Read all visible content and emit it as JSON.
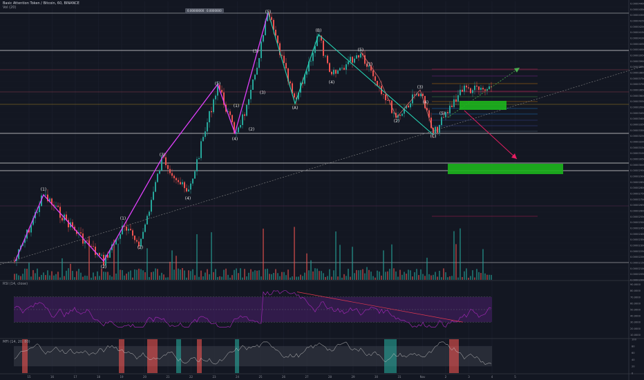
{
  "header": {
    "symbol_line": "Basic Attention Token / Bitcoin, 60, BINANCE",
    "vol_label": "Vol (20)",
    "buttons": [
      "0.00000000",
      "0.0000000"
    ],
    "rsi_label": "RSI (14, close)",
    "mfi_label": "MFI (14, 20, 80)"
  },
  "chart_data": {
    "type": "candlestick",
    "x_tick_labels": [
      "15",
      "16",
      "17",
      "18",
      "19",
      "20",
      "21",
      "22",
      "23",
      "24",
      "25",
      "26",
      "27",
      "28",
      "29",
      "30",
      "31",
      "Nov",
      "2",
      "3",
      "4",
      "5"
    ],
    "price_axis_labels": [
      "0.00004400",
      "0.00004350",
      "0.00004300",
      "0.00004250",
      "0.00004200",
      "0.00004150",
      "0.00004100",
      "0.00004050",
      "0.00004000",
      "0.00003950",
      "0.00003900",
      "0.00003850",
      "0.00003800",
      "0.00003750",
      "0.00003700",
      "0.00003650",
      "0.00003600",
      "0.00003550",
      "0.00003500",
      "0.00003450",
      "0.00003400",
      "0.00003350",
      "0.00003300",
      "0.00003250",
      "0.00003200",
      "0.00003150",
      "0.00003100",
      "0.00003050",
      "0.00003000",
      "0.00002950",
      "0.00002900",
      "0.00002850",
      "0.00002800",
      "0.00002750",
      "0.00002700",
      "0.00002650",
      "0.00002600",
      "0.00002550",
      "0.00002500",
      "0.00002450",
      "0.00002400",
      "0.00002350",
      "0.00002300",
      "0.00002250",
      "0.00002200",
      "0.00002150",
      "0.00002100",
      "0.00002050",
      "0.00002000"
    ],
    "rsi_axis_labels": [
      "90.0000",
      "80.0000",
      "70.0000",
      "60.0000",
      "50.0000",
      "40.0000",
      "30.0000",
      "20.0000",
      "10.0000"
    ],
    "mfi_axis_labels": [
      "100",
      "80",
      "60",
      "40",
      "20",
      "0"
    ],
    "wave_labels": [
      "(1)",
      "(2)",
      "(3)",
      "(4)",
      "(5)",
      "(1)",
      "(2)",
      "(3)",
      "(4)",
      "(5)",
      "(A)",
      "(B)",
      "(C)",
      "(1)",
      "(2)",
      "(3)",
      "(4)",
      "(5)",
      "(1)",
      "(2)",
      "(3)",
      "(4)",
      "(5)"
    ],
    "colors": {
      "background": "#131722",
      "up": "#26a69a",
      "down": "#ef5350",
      "impulse": "#e040fb",
      "correction": "#26d6b6",
      "target_box": "#1db51d",
      "rsi_band": "#4a1f6b",
      "rsi_line": "#9c27b0",
      "mfi_line": "#c8c8c8",
      "arrow_up": "#4caf50",
      "arrow_down": "#e91e63"
    }
  }
}
